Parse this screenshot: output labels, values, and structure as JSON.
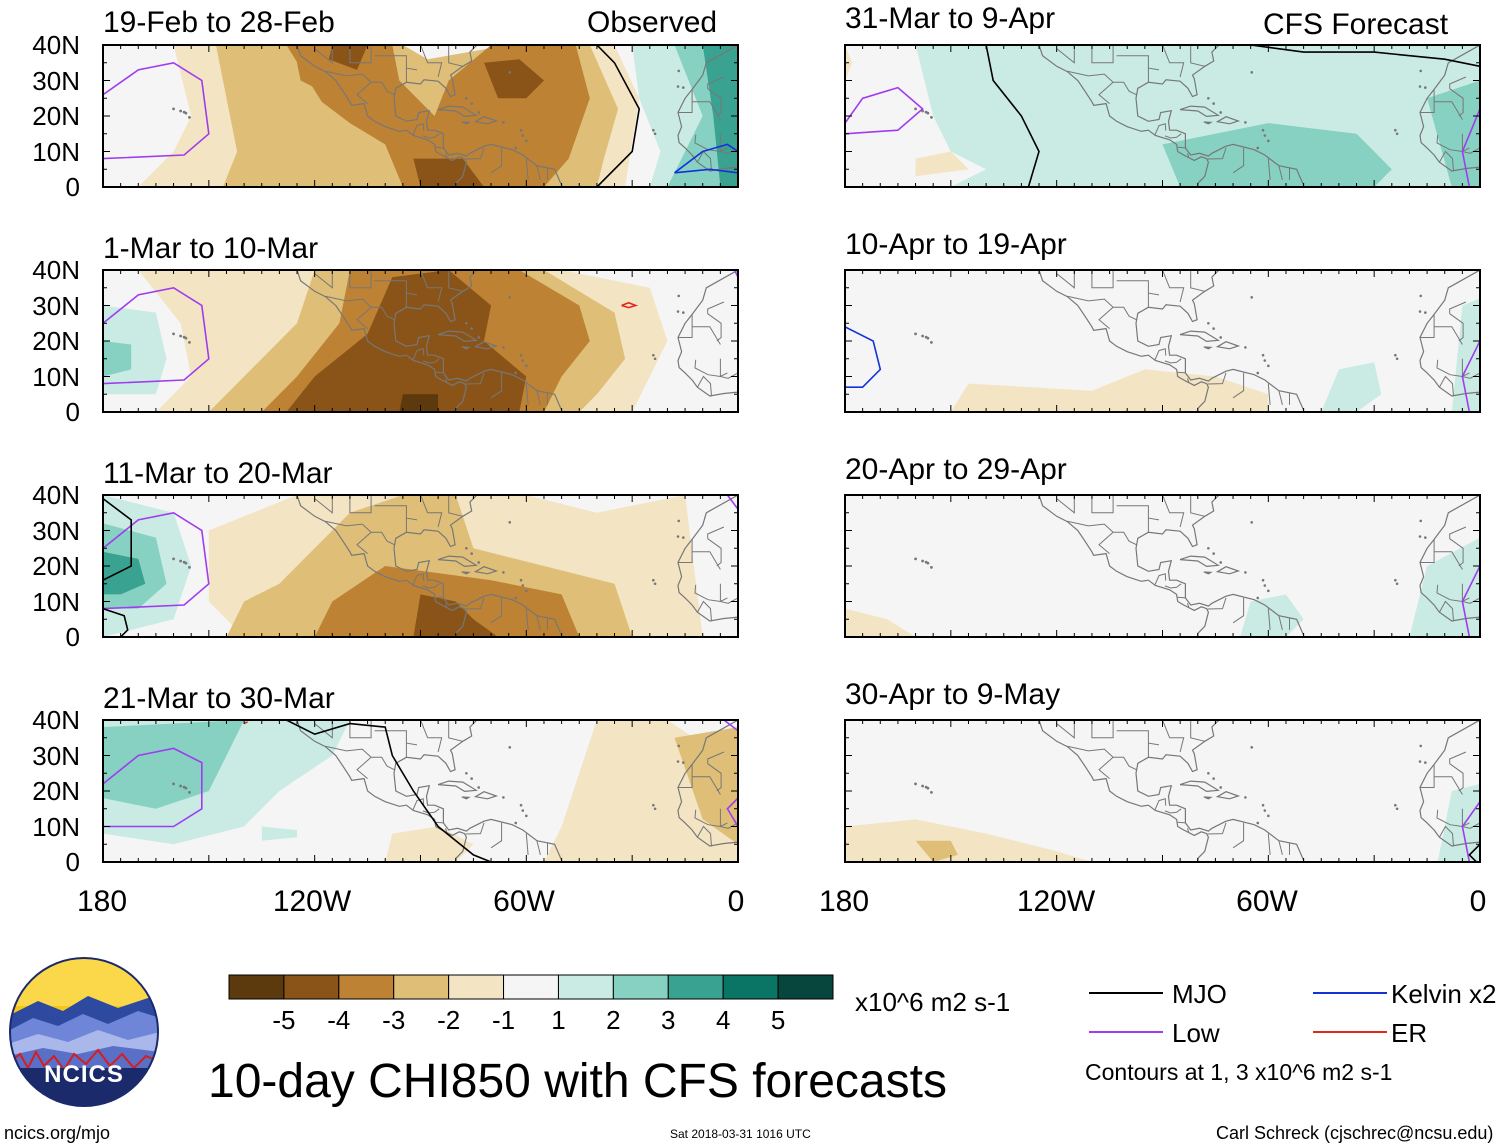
{
  "chart_data": {
    "type": "heatmap",
    "title": "10-day CHI850 with CFS forecasts",
    "variable": "CHI850",
    "units": "x10^6 m2 s-1",
    "region": {
      "lon_range": [
        "180",
        "0"
      ],
      "lat_range": [
        "0",
        "40N"
      ]
    },
    "lat_ticks": [
      "40N",
      "30N",
      "20N",
      "10N",
      "0"
    ],
    "lon_ticks": [
      "180",
      "120W",
      "60W",
      "0"
    ],
    "colorbar": {
      "levels": [
        "-5",
        "-4",
        "-3",
        "-2",
        "-1",
        "1",
        "2",
        "3",
        "4",
        "5"
      ],
      "colors": [
        "#5c3a0e",
        "#8a5418",
        "#bd8234",
        "#dfbf78",
        "#f3e4c3",
        "#f5f5f5",
        "#c9ebe3",
        "#86d1c2",
        "#3aa291",
        "#0a7465",
        "#06463c"
      ]
    },
    "legend": [
      {
        "label": "MJO",
        "color": "#000000"
      },
      {
        "label": "Kelvin x2",
        "color": "#1433d6"
      },
      {
        "label": "Low",
        "color": "#a03cf0"
      },
      {
        "label": "ER",
        "color": "#e0281e"
      }
    ],
    "contour_note": "Contours at 1, 3 x10^6 m2 s-1",
    "columns": [
      {
        "label": "Observed",
        "panels": [
          "19-Feb to 28-Feb",
          "1-Mar to 10-Mar",
          "11-Mar to 20-Mar",
          "21-Mar to 30-Mar"
        ]
      },
      {
        "label": "CFS Forecast",
        "panels": [
          "31-Mar to 9-Apr",
          "10-Apr to 19-Apr",
          "20-Apr to 29-Apr",
          "30-Apr to 9-May"
        ]
      }
    ]
  },
  "colors": {
    "neg5": "#5c3a0e",
    "neg4": "#8a5418",
    "neg3": "#bd8234",
    "neg2": "#dfbf78",
    "neg1": "#f3e4c3",
    "zero": "#f5f5f5",
    "pos1": "#c9ebe3",
    "pos2": "#86d1c2",
    "pos3": "#3aa291",
    "pos4": "#0a7465",
    "pos5": "#06463c",
    "land": "#777777",
    "logo_navy": "#1b2a6b",
    "logo_yellow": "#f5c61a"
  },
  "footer": {
    "site": "ncics.org/mjo",
    "timestamp": "Sat 2018-03-31 1016 UTC",
    "author": "Carl Schreck (cjschrec@ncsu.edu)"
  },
  "logo": {
    "text": "NCICS"
  }
}
